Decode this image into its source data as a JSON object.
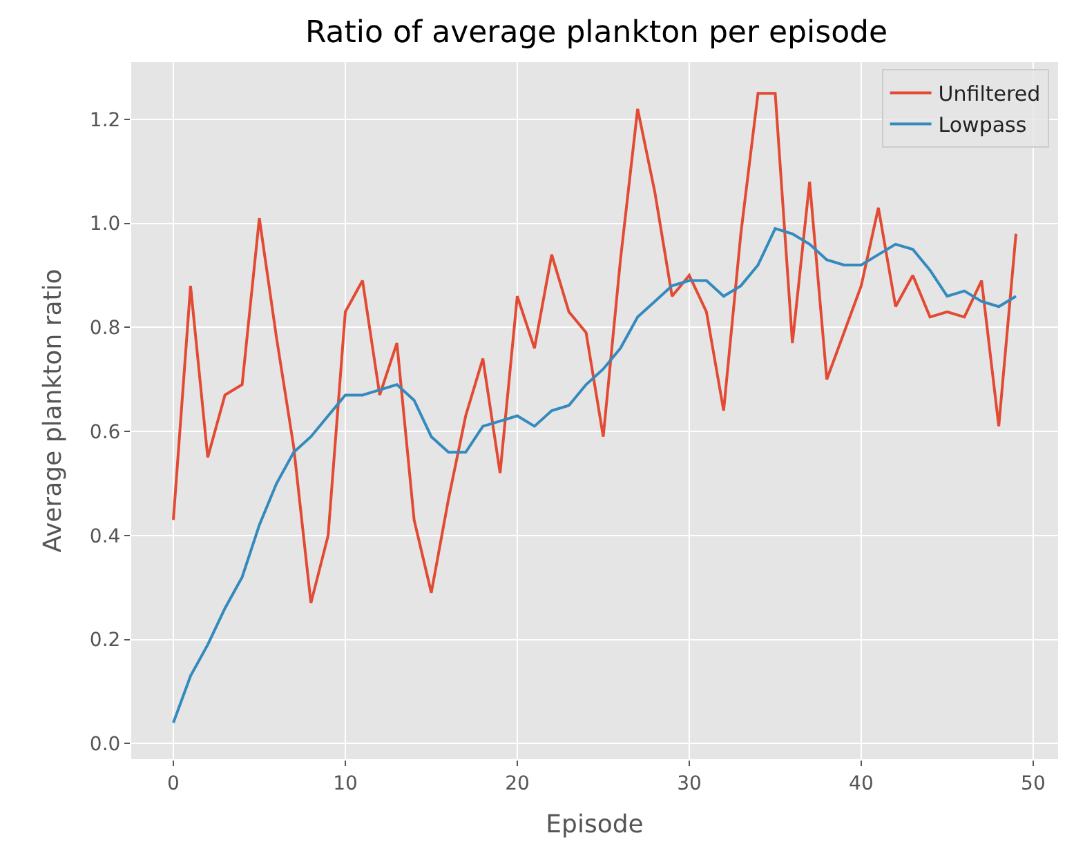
{
  "chart_data": {
    "type": "line",
    "title": "Ratio of average plankton per episode",
    "xlabel": "Episode",
    "ylabel": "Average plankton ratio",
    "x": [
      0,
      1,
      2,
      3,
      4,
      5,
      6,
      7,
      8,
      9,
      10,
      11,
      12,
      13,
      14,
      15,
      16,
      17,
      18,
      19,
      20,
      21,
      22,
      23,
      24,
      25,
      26,
      27,
      28,
      29,
      30,
      31,
      32,
      33,
      34,
      35,
      36,
      37,
      38,
      39,
      40,
      41,
      42,
      43,
      44,
      45,
      46,
      47,
      48,
      49
    ],
    "series": [
      {
        "name": "Unfiltered",
        "color": "#e24a33",
        "values": [
          0.43,
          0.88,
          0.55,
          0.67,
          0.69,
          1.01,
          0.78,
          0.57,
          0.27,
          0.4,
          0.83,
          0.89,
          0.67,
          0.77,
          0.43,
          0.29,
          0.47,
          0.63,
          0.74,
          0.52,
          0.86,
          0.76,
          0.94,
          0.83,
          0.79,
          0.59,
          0.93,
          1.22,
          1.06,
          0.86,
          0.9,
          0.83,
          0.64,
          0.98,
          1.25,
          1.25,
          0.77,
          1.08,
          0.7,
          0.79,
          0.88,
          1.03,
          0.84,
          0.9,
          0.82,
          0.83,
          0.82,
          0.89,
          0.61,
          0.98
        ]
      },
      {
        "name": "Lowpass",
        "color": "#348abd",
        "values": [
          0.04,
          0.13,
          0.19,
          0.26,
          0.32,
          0.42,
          0.5,
          0.56,
          0.59,
          0.63,
          0.67,
          0.67,
          0.68,
          0.69,
          0.66,
          0.59,
          0.56,
          0.56,
          0.61,
          0.62,
          0.63,
          0.61,
          0.64,
          0.65,
          0.69,
          0.72,
          0.76,
          0.82,
          0.85,
          0.88,
          0.89,
          0.89,
          0.86,
          0.88,
          0.92,
          0.99,
          0.98,
          0.96,
          0.93,
          0.92,
          0.92,
          0.94,
          0.96,
          0.95,
          0.91,
          0.86,
          0.87,
          0.85,
          0.84,
          0.86
        ]
      }
    ],
    "xlim": [
      -2.45,
      51.45
    ],
    "xticks": [
      0,
      10,
      20,
      30,
      40,
      50
    ],
    "ylim": [
      -0.03,
      1.31
    ],
    "yticks": [
      {
        "value": 0,
        "label": "0.0"
      },
      0.2,
      0.4,
      0.6,
      0.8,
      {
        "value": 1,
        "label": "1.0"
      },
      1.2
    ],
    "grid": true,
    "legend": "top right",
    "line_style": "solid"
  }
}
